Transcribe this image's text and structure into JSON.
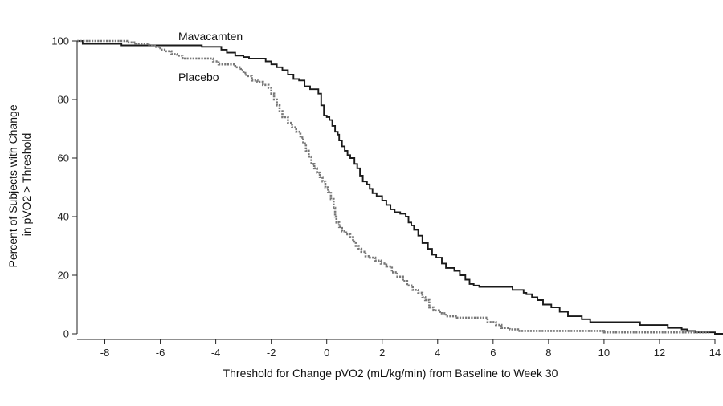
{
  "chart_data": {
    "type": "line",
    "title": "",
    "xlabel": "Threshold for Change pVO2 (mL/kg/min) from Baseline to Week 30",
    "ylabel_lines": [
      "Percent of Subjects with Change",
      "in pVO2 > Threshold"
    ],
    "xlim": [
      -9,
      14
    ],
    "ylim": [
      0,
      100
    ],
    "xticks": [
      -8,
      -6,
      -4,
      -2,
      0,
      2,
      4,
      6,
      8,
      10,
      12,
      14
    ],
    "yticks": [
      0,
      20,
      40,
      60,
      80,
      100
    ],
    "grid": false,
    "legend": "inline labels",
    "series": [
      {
        "name": "Mavacamten",
        "style": "solid",
        "color": "#1a1a1a",
        "points": [
          [
            -9,
            100
          ],
          [
            -8.8,
            99
          ],
          [
            -7.5,
            99
          ],
          [
            -7.4,
            98.5
          ],
          [
            -4.6,
            98.5
          ],
          [
            -4.5,
            98
          ],
          [
            -3.9,
            98
          ],
          [
            -3.8,
            97
          ],
          [
            -3.6,
            96
          ],
          [
            -3.3,
            95
          ],
          [
            -3,
            94.5
          ],
          [
            -2.8,
            94
          ],
          [
            -2.2,
            93
          ],
          [
            -2,
            92
          ],
          [
            -1.8,
            91
          ],
          [
            -1.6,
            90
          ],
          [
            -1.4,
            88.5
          ],
          [
            -1.2,
            87
          ],
          [
            -1,
            86.5
          ],
          [
            -0.8,
            84.5
          ],
          [
            -0.6,
            83.5
          ],
          [
            -0.3,
            83
          ],
          [
            -0.3,
            82
          ],
          [
            -0.2,
            81
          ],
          [
            -0.2,
            78
          ],
          [
            -0.1,
            77
          ],
          [
            -0.1,
            74.5
          ],
          [
            0,
            74
          ],
          [
            0.1,
            73
          ],
          [
            0.2,
            71
          ],
          [
            0.3,
            69
          ],
          [
            0.4,
            68
          ],
          [
            0.45,
            66
          ],
          [
            0.55,
            64
          ],
          [
            0.65,
            62.5
          ],
          [
            0.75,
            61
          ],
          [
            0.85,
            60
          ],
          [
            1,
            58
          ],
          [
            1.1,
            56.5
          ],
          [
            1.2,
            54
          ],
          [
            1.3,
            52
          ],
          [
            1.45,
            51
          ],
          [
            1.55,
            49.5
          ],
          [
            1.65,
            48
          ],
          [
            1.8,
            47
          ],
          [
            2,
            45.5
          ],
          [
            2.15,
            44
          ],
          [
            2.3,
            42.5
          ],
          [
            2.45,
            41.5
          ],
          [
            2.65,
            41
          ],
          [
            2.85,
            40
          ],
          [
            2.95,
            38
          ],
          [
            3.05,
            37
          ],
          [
            3.15,
            35.5
          ],
          [
            3.3,
            33.5
          ],
          [
            3.45,
            31
          ],
          [
            3.65,
            29
          ],
          [
            3.8,
            27
          ],
          [
            3.95,
            26
          ],
          [
            4.15,
            24
          ],
          [
            4.3,
            22.5
          ],
          [
            4.6,
            21.5
          ],
          [
            4.8,
            20
          ],
          [
            5,
            18.5
          ],
          [
            5.15,
            17
          ],
          [
            5.3,
            16.5
          ],
          [
            5.5,
            16
          ],
          [
            6.5,
            16
          ],
          [
            6.7,
            15
          ],
          [
            7.1,
            14
          ],
          [
            7.2,
            13.5
          ],
          [
            7.4,
            12.5
          ],
          [
            7.6,
            11.5
          ],
          [
            7.8,
            10
          ],
          [
            8.1,
            9
          ],
          [
            8.4,
            7.5
          ],
          [
            8.7,
            6
          ],
          [
            9.2,
            5
          ],
          [
            9.5,
            4
          ],
          [
            11,
            4
          ],
          [
            11.3,
            3
          ],
          [
            12,
            3
          ],
          [
            12.3,
            2
          ],
          [
            12.8,
            1.5
          ],
          [
            13,
            1
          ],
          [
            13.3,
            0.5
          ],
          [
            14,
            0
          ],
          [
            14.5,
            0
          ]
        ]
      },
      {
        "name": "Placebo",
        "style": "dotted",
        "color": "#777777",
        "points": [
          [
            -9,
            100
          ],
          [
            -7.3,
            100
          ],
          [
            -7.2,
            99.5
          ],
          [
            -6.9,
            99
          ],
          [
            -6.4,
            98.5
          ],
          [
            -6.2,
            98
          ],
          [
            -6,
            97
          ],
          [
            -5.8,
            96.5
          ],
          [
            -5.6,
            95.5
          ],
          [
            -5.4,
            95
          ],
          [
            -5.2,
            94
          ],
          [
            -4.2,
            94
          ],
          [
            -4.1,
            93
          ],
          [
            -3.9,
            92
          ],
          [
            -3.4,
            92
          ],
          [
            -3.3,
            91
          ],
          [
            -3.1,
            90
          ],
          [
            -3,
            89
          ],
          [
            -2.9,
            88
          ],
          [
            -2.7,
            86.5
          ],
          [
            -2.5,
            86
          ],
          [
            -2.3,
            85
          ],
          [
            -2.1,
            84
          ],
          [
            -2,
            82
          ],
          [
            -1.9,
            80
          ],
          [
            -1.8,
            78
          ],
          [
            -1.7,
            76
          ],
          [
            -1.6,
            74
          ],
          [
            -1.4,
            72
          ],
          [
            -1.25,
            70.5
          ],
          [
            -1.1,
            69
          ],
          [
            -0.95,
            67
          ],
          [
            -0.85,
            65
          ],
          [
            -0.75,
            62.5
          ],
          [
            -0.65,
            60.5
          ],
          [
            -0.55,
            58
          ],
          [
            -0.45,
            56.5
          ],
          [
            -0.35,
            55
          ],
          [
            -0.25,
            53.5
          ],
          [
            -0.15,
            52
          ],
          [
            -0.05,
            50
          ],
          [
            0.05,
            48.5
          ],
          [
            0.15,
            46
          ],
          [
            0.25,
            43
          ],
          [
            0.3,
            40
          ],
          [
            0.35,
            38
          ],
          [
            0.45,
            36.5
          ],
          [
            0.55,
            35
          ],
          [
            0.7,
            34
          ],
          [
            0.85,
            33
          ],
          [
            0.95,
            31.5
          ],
          [
            1.05,
            30
          ],
          [
            1.15,
            29
          ],
          [
            1.25,
            28
          ],
          [
            1.4,
            26.5
          ],
          [
            1.55,
            26
          ],
          [
            1.75,
            25
          ],
          [
            1.95,
            24
          ],
          [
            2.15,
            23
          ],
          [
            2.35,
            21
          ],
          [
            2.55,
            19.5
          ],
          [
            2.75,
            18
          ],
          [
            2.9,
            16.5
          ],
          [
            3.1,
            15
          ],
          [
            3.3,
            14
          ],
          [
            3.45,
            12.5
          ],
          [
            3.55,
            11.5
          ],
          [
            3.7,
            9
          ],
          [
            3.85,
            8
          ],
          [
            4.05,
            7.5
          ],
          [
            4.15,
            7
          ],
          [
            4.3,
            6
          ],
          [
            4.6,
            6
          ],
          [
            4.7,
            5.5
          ],
          [
            5.6,
            5.5
          ],
          [
            5.8,
            4
          ],
          [
            6.1,
            3
          ],
          [
            6.3,
            2
          ],
          [
            6.6,
            1.5
          ],
          [
            6.9,
            1
          ],
          [
            9.8,
            1
          ],
          [
            10,
            0.5
          ],
          [
            13.8,
            0.5
          ]
        ]
      }
    ]
  }
}
